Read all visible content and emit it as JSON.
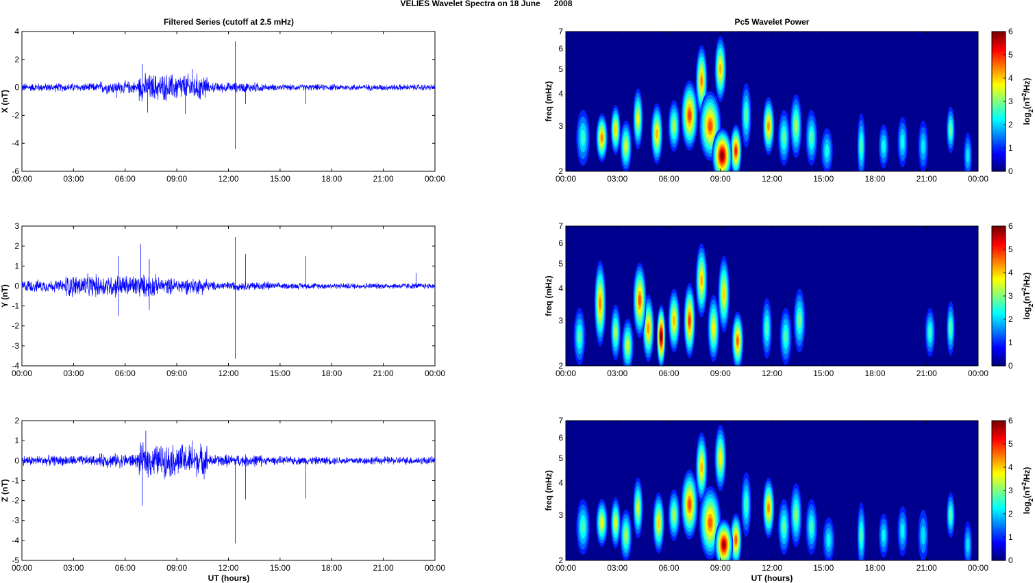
{
  "figure": {
    "suptitle": "VELIES Wavelet Spectra on 18 June      2008",
    "left_title": "Filtered Series (cutoff at 2.5 mHz)",
    "right_title": "Pc5 Wavelet Power",
    "xlabel": "UT (hours)"
  },
  "colors": {
    "series": "#0000ff",
    "background_power": "#00008f",
    "axes": "#000000"
  },
  "chart_data": [
    {
      "type": "line",
      "name_on_axis": "X (nT)",
      "ylabel": "X (nT)",
      "xlim": [
        0,
        24
      ],
      "ylim": [
        -6,
        4
      ],
      "xticks": [
        "00:00",
        "03:00",
        "06:00",
        "09:00",
        "12:00",
        "15:00",
        "18:00",
        "21:00",
        "00:00"
      ],
      "yticks": [
        "-6",
        "-4",
        "-2",
        "0",
        "2",
        "4"
      ],
      "activity": [
        {
          "t0": 0,
          "t1": 4.5,
          "amp": 0.3
        },
        {
          "t0": 4.5,
          "t1": 6.8,
          "amp": 0.45
        },
        {
          "t0": 6.8,
          "t1": 10.8,
          "amp": 0.95
        },
        {
          "t0": 10.8,
          "t1": 14.0,
          "amp": 0.35
        },
        {
          "t0": 14.0,
          "t1": 24,
          "amp": 0.22
        }
      ],
      "spikes": [
        {
          "t": 5.5,
          "v": -0.75
        },
        {
          "t": 7.0,
          "v": 1.7
        },
        {
          "t": 7.3,
          "v": -1.8
        },
        {
          "t": 9.9,
          "v": 1.3
        },
        {
          "t": 9.5,
          "v": -1.9
        },
        {
          "t": 12.4,
          "v": 3.3
        },
        {
          "t": 12.4,
          "v": -4.4
        },
        {
          "t": 13.0,
          "v": -1.2
        },
        {
          "t": 16.5,
          "v": -1.2
        }
      ]
    },
    {
      "type": "line",
      "ylabel": "Y (nT)",
      "xlim": [
        0,
        24
      ],
      "ylim": [
        -4,
        3
      ],
      "xticks": [
        "00:00",
        "03:00",
        "06:00",
        "09:00",
        "12:00",
        "15:00",
        "18:00",
        "21:00",
        "00:00"
      ],
      "yticks": [
        "-4",
        "-3",
        "-2",
        "-1",
        "0",
        "1",
        "2",
        "3"
      ],
      "activity": [
        {
          "t0": 0,
          "t1": 2.5,
          "amp": 0.3
        },
        {
          "t0": 2.5,
          "t1": 7.8,
          "amp": 0.55
        },
        {
          "t0": 7.8,
          "t1": 10.8,
          "amp": 0.4
        },
        {
          "t0": 10.8,
          "t1": 14.5,
          "amp": 0.22
        },
        {
          "t0": 14.5,
          "t1": 24,
          "amp": 0.15
        }
      ],
      "spikes": [
        {
          "t": 5.6,
          "v": 1.5
        },
        {
          "t": 5.6,
          "v": -1.5
        },
        {
          "t": 6.9,
          "v": 2.1
        },
        {
          "t": 7.4,
          "v": 1.35
        },
        {
          "t": 7.4,
          "v": -1.2
        },
        {
          "t": 12.4,
          "v": 2.45
        },
        {
          "t": 12.4,
          "v": -3.65
        },
        {
          "t": 13.0,
          "v": 1.6
        },
        {
          "t": 16.5,
          "v": 1.5
        },
        {
          "t": 22.9,
          "v": 0.65
        }
      ]
    },
    {
      "type": "line",
      "ylabel": "Z (nT)",
      "xlim": [
        0,
        24
      ],
      "ylim": [
        -5,
        2
      ],
      "xticks": [
        "00:00",
        "03:00",
        "06:00",
        "09:00",
        "12:00",
        "15:00",
        "18:00",
        "21:00",
        "00:00"
      ],
      "yticks": [
        "-5",
        "-4",
        "-3",
        "-2",
        "-1",
        "0",
        "1",
        "2"
      ],
      "activity": [
        {
          "t0": 0,
          "t1": 4.5,
          "amp": 0.25
        },
        {
          "t0": 4.5,
          "t1": 6.8,
          "amp": 0.35
        },
        {
          "t0": 6.8,
          "t1": 10.8,
          "amp": 0.8
        },
        {
          "t0": 10.8,
          "t1": 14.0,
          "amp": 0.3
        },
        {
          "t0": 14.0,
          "t1": 24,
          "amp": 0.2
        }
      ],
      "spikes": [
        {
          "t": 7.0,
          "v": -2.25
        },
        {
          "t": 7.2,
          "v": 1.5
        },
        {
          "t": 12.4,
          "v": -4.15
        },
        {
          "t": 13.0,
          "v": -1.95
        },
        {
          "t": 16.5,
          "v": -1.9
        },
        {
          "t": 9.9,
          "v": 1.0
        }
      ]
    },
    {
      "type": "heatmap",
      "ylabel": "freq (mHz)",
      "xlim": [
        0,
        24
      ],
      "ylim": [
        2,
        7
      ],
      "yscale": "log",
      "xticks": [
        "00:00",
        "03:00",
        "06:00",
        "09:00",
        "12:00",
        "15:00",
        "18:00",
        "21:00",
        "00:00"
      ],
      "yticks": [
        "2",
        "3",
        "4",
        "5",
        "6",
        "7"
      ],
      "colorbar_label": "log2(nT^2/Hz)",
      "colorbar_label_parts": {
        "pre": "log",
        "sub": "2",
        "mid": "(nT",
        "sup": "2",
        "post": "/Hz)"
      },
      "clim": [
        0,
        6
      ],
      "colorbar_ticks": [
        "0",
        "1",
        "2",
        "3",
        "4",
        "5",
        "6"
      ],
      "blobs": [
        {
          "t": 1.0,
          "f": 2.7,
          "w": 0.35,
          "h": 0.6,
          "v": 2.2
        },
        {
          "t": 2.1,
          "f": 2.7,
          "w": 0.3,
          "h": 0.5,
          "v": 4.3
        },
        {
          "t": 2.9,
          "f": 2.9,
          "w": 0.25,
          "h": 0.55,
          "v": 3.8
        },
        {
          "t": 3.5,
          "f": 2.5,
          "w": 0.3,
          "h": 0.5,
          "v": 3.3
        },
        {
          "t": 4.2,
          "f": 3.2,
          "w": 0.25,
          "h": 0.8,
          "v": 3.5
        },
        {
          "t": 5.3,
          "f": 2.8,
          "w": 0.3,
          "h": 0.7,
          "v": 4.0
        },
        {
          "t": 6.3,
          "f": 3.0,
          "w": 0.3,
          "h": 0.6,
          "v": 3.0
        },
        {
          "t": 7.2,
          "f": 3.3,
          "w": 0.45,
          "h": 1.0,
          "v": 4.8
        },
        {
          "t": 7.9,
          "f": 4.5,
          "w": 0.3,
          "h": 1.4,
          "v": 4.3
        },
        {
          "t": 8.4,
          "f": 3.0,
          "w": 0.6,
          "h": 0.9,
          "v": 4.7
        },
        {
          "t": 9.1,
          "f": 2.3,
          "w": 0.55,
          "h": 0.5,
          "v": 6.0
        },
        {
          "t": 9.0,
          "f": 5.0,
          "w": 0.3,
          "h": 1.4,
          "v": 4.0
        },
        {
          "t": 9.9,
          "f": 2.4,
          "w": 0.3,
          "h": 0.5,
          "v": 5.0
        },
        {
          "t": 10.5,
          "f": 3.3,
          "w": 0.25,
          "h": 0.9,
          "v": 2.5
        },
        {
          "t": 11.8,
          "f": 3.0,
          "w": 0.3,
          "h": 0.7,
          "v": 4.2
        },
        {
          "t": 12.7,
          "f": 2.7,
          "w": 0.3,
          "h": 0.6,
          "v": 2.5
        },
        {
          "t": 13.4,
          "f": 3.0,
          "w": 0.3,
          "h": 0.8,
          "v": 3.0
        },
        {
          "t": 14.3,
          "f": 2.7,
          "w": 0.3,
          "h": 0.6,
          "v": 2.4
        },
        {
          "t": 15.2,
          "f": 2.4,
          "w": 0.3,
          "h": 0.4,
          "v": 2.0
        },
        {
          "t": 17.2,
          "f": 2.5,
          "w": 0.2,
          "h": 0.7,
          "v": 2.4
        },
        {
          "t": 18.5,
          "f": 2.5,
          "w": 0.25,
          "h": 0.4,
          "v": 2.0
        },
        {
          "t": 19.6,
          "f": 2.6,
          "w": 0.25,
          "h": 0.5,
          "v": 2.0
        },
        {
          "t": 20.8,
          "f": 2.5,
          "w": 0.25,
          "h": 0.5,
          "v": 1.8
        },
        {
          "t": 22.4,
          "f": 2.9,
          "w": 0.2,
          "h": 0.5,
          "v": 2.6
        },
        {
          "t": 23.4,
          "f": 2.3,
          "w": 0.2,
          "h": 0.4,
          "v": 1.8
        }
      ]
    },
    {
      "type": "heatmap",
      "ylabel": "freq (mHz)",
      "xlim": [
        0,
        24
      ],
      "ylim": [
        2,
        7
      ],
      "yscale": "log",
      "xticks": [
        "00:00",
        "03:00",
        "06:00",
        "09:00",
        "12:00",
        "15:00",
        "18:00",
        "21:00",
        "00:00"
      ],
      "yticks": [
        "2",
        "3",
        "4",
        "5",
        "6",
        "7"
      ],
      "colorbar_label": "log2(nT^2/Hz)",
      "colorbar_label_parts": {
        "pre": "log",
        "sub": "2",
        "mid": "(nT",
        "sup": "2",
        "post": "/Hz)"
      },
      "clim": [
        0,
        6
      ],
      "colorbar_ticks": [
        "0",
        "1",
        "2",
        "3",
        "4",
        "5",
        "6"
      ],
      "blobs": [
        {
          "t": 0.8,
          "f": 2.6,
          "w": 0.3,
          "h": 0.6,
          "v": 2.4
        },
        {
          "t": 2.0,
          "f": 3.5,
          "w": 0.3,
          "h": 1.4,
          "v": 4.3
        },
        {
          "t": 2.9,
          "f": 2.7,
          "w": 0.25,
          "h": 0.6,
          "v": 3.0
        },
        {
          "t": 3.6,
          "f": 2.4,
          "w": 0.3,
          "h": 0.5,
          "v": 3.2
        },
        {
          "t": 4.3,
          "f": 3.6,
          "w": 0.35,
          "h": 1.2,
          "v": 4.6
        },
        {
          "t": 4.8,
          "f": 2.8,
          "w": 0.3,
          "h": 0.8,
          "v": 4.2
        },
        {
          "t": 5.55,
          "f": 2.6,
          "w": 0.22,
          "h": 0.7,
          "v": 6.0
        },
        {
          "t": 6.3,
          "f": 3.0,
          "w": 0.3,
          "h": 0.8,
          "v": 4.0
        },
        {
          "t": 7.2,
          "f": 3.0,
          "w": 0.3,
          "h": 1.0,
          "v": 4.8
        },
        {
          "t": 7.9,
          "f": 4.3,
          "w": 0.3,
          "h": 1.4,
          "v": 4.0
        },
        {
          "t": 8.6,
          "f": 2.8,
          "w": 0.3,
          "h": 0.8,
          "v": 3.6
        },
        {
          "t": 9.2,
          "f": 3.8,
          "w": 0.3,
          "h": 1.3,
          "v": 3.8
        },
        {
          "t": 10.0,
          "f": 2.5,
          "w": 0.3,
          "h": 0.6,
          "v": 4.5
        },
        {
          "t": 11.7,
          "f": 2.8,
          "w": 0.25,
          "h": 0.7,
          "v": 2.4
        },
        {
          "t": 12.8,
          "f": 2.6,
          "w": 0.3,
          "h": 0.6,
          "v": 2.4
        },
        {
          "t": 13.6,
          "f": 3.0,
          "w": 0.3,
          "h": 0.8,
          "v": 2.6
        },
        {
          "t": 21.2,
          "f": 2.7,
          "w": 0.25,
          "h": 0.5,
          "v": 2.3
        },
        {
          "t": 22.4,
          "f": 2.8,
          "w": 0.2,
          "h": 0.6,
          "v": 2.5
        }
      ]
    },
    {
      "type": "heatmap",
      "ylabel": "freq (mHz)",
      "xlim": [
        0,
        24
      ],
      "ylim": [
        2,
        7
      ],
      "yscale": "log",
      "xticks": [
        "00:00",
        "03:00",
        "06:00",
        "09:00",
        "12:00",
        "15:00",
        "18:00",
        "21:00",
        "00:00"
      ],
      "yticks": [
        "2",
        "3",
        "4",
        "5",
        "6",
        "7"
      ],
      "colorbar_label": "log2(nT^2/Hz)",
      "colorbar_label_parts": {
        "pre": "log",
        "sub": "2",
        "mid": "(nT",
        "sup": "2",
        "post": "/Hz)"
      },
      "clim": [
        0,
        6
      ],
      "colorbar_ticks": [
        "0",
        "1",
        "2",
        "3",
        "4",
        "5",
        "6"
      ],
      "blobs": [
        {
          "t": 1.0,
          "f": 2.7,
          "w": 0.35,
          "h": 0.6,
          "v": 2.4
        },
        {
          "t": 2.1,
          "f": 2.8,
          "w": 0.3,
          "h": 0.5,
          "v": 3.5
        },
        {
          "t": 2.9,
          "f": 2.8,
          "w": 0.25,
          "h": 0.55,
          "v": 3.4
        },
        {
          "t": 3.5,
          "f": 2.5,
          "w": 0.3,
          "h": 0.5,
          "v": 3.0
        },
        {
          "t": 4.2,
          "f": 3.2,
          "w": 0.25,
          "h": 0.8,
          "v": 3.3
        },
        {
          "t": 5.4,
          "f": 2.8,
          "w": 0.3,
          "h": 0.7,
          "v": 3.8
        },
        {
          "t": 6.3,
          "f": 3.0,
          "w": 0.3,
          "h": 0.6,
          "v": 3.0
        },
        {
          "t": 7.2,
          "f": 3.3,
          "w": 0.45,
          "h": 1.0,
          "v": 4.7
        },
        {
          "t": 7.9,
          "f": 4.6,
          "w": 0.3,
          "h": 1.4,
          "v": 4.0
        },
        {
          "t": 8.4,
          "f": 2.8,
          "w": 0.6,
          "h": 0.9,
          "v": 4.6
        },
        {
          "t": 9.2,
          "f": 2.3,
          "w": 0.5,
          "h": 0.45,
          "v": 5.8
        },
        {
          "t": 9.0,
          "f": 5.0,
          "w": 0.3,
          "h": 1.4,
          "v": 3.6
        },
        {
          "t": 9.9,
          "f": 2.4,
          "w": 0.3,
          "h": 0.5,
          "v": 4.6
        },
        {
          "t": 10.5,
          "f": 3.3,
          "w": 0.25,
          "h": 0.9,
          "v": 2.4
        },
        {
          "t": 11.8,
          "f": 3.2,
          "w": 0.3,
          "h": 0.8,
          "v": 4.3
        },
        {
          "t": 12.7,
          "f": 2.7,
          "w": 0.3,
          "h": 0.6,
          "v": 2.5
        },
        {
          "t": 13.4,
          "f": 3.0,
          "w": 0.3,
          "h": 0.8,
          "v": 2.8
        },
        {
          "t": 14.3,
          "f": 2.7,
          "w": 0.3,
          "h": 0.6,
          "v": 2.3
        },
        {
          "t": 15.3,
          "f": 2.4,
          "w": 0.3,
          "h": 0.4,
          "v": 1.9
        },
        {
          "t": 17.2,
          "f": 2.5,
          "w": 0.2,
          "h": 0.7,
          "v": 2.4
        },
        {
          "t": 18.5,
          "f": 2.5,
          "w": 0.25,
          "h": 0.4,
          "v": 1.9
        },
        {
          "t": 19.6,
          "f": 2.6,
          "w": 0.25,
          "h": 0.5,
          "v": 1.9
        },
        {
          "t": 20.8,
          "f": 2.5,
          "w": 0.25,
          "h": 0.5,
          "v": 1.7
        },
        {
          "t": 22.4,
          "f": 3.0,
          "w": 0.2,
          "h": 0.5,
          "v": 2.5
        },
        {
          "t": 23.4,
          "f": 2.3,
          "w": 0.2,
          "h": 0.4,
          "v": 1.8
        }
      ]
    }
  ]
}
